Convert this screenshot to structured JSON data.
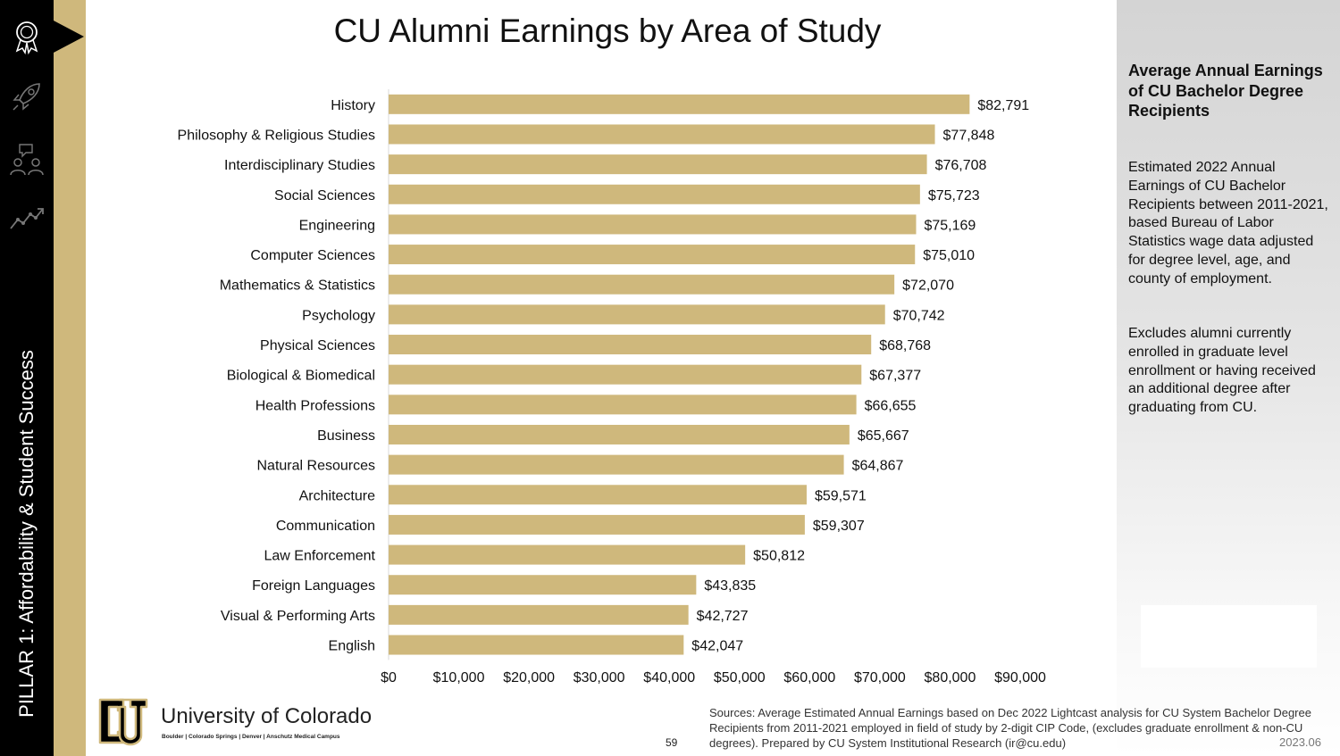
{
  "title": "CU Alumni Earnings by Area of Study",
  "sidebar": {
    "pillar_label": "PILLAR 1: Affordability & Student Success",
    "icons": [
      "award-ribbon-icon",
      "rocket-icon",
      "people-discussion-icon",
      "growth-chart-icon"
    ]
  },
  "panel": {
    "heading": "Average Annual Earnings of CU Bachelor Degree Recipients",
    "description": "Estimated 2022 Annual Earnings of CU Bachelor Recipients between 2011-2021, based Bureau of Labor Statistics wage data adjusted for degree level, age, and county of employment.",
    "note": "Excludes alumni currently enrolled in graduate level enrollment or having received an additional degree after graduating from CU."
  },
  "footer": {
    "university": "University of Colorado",
    "campuses": "Boulder | Colorado Springs | Denver | Anschutz Medical Campus",
    "page_number": "59",
    "sources": "Sources: Average Estimated Annual Earnings based on Dec 2022 Lightcast analysis for CU System Bachelor Degree Recipients from 2011-2021 employed in field of study by 2-digit CIP Code, (excludes graduate enrollment & non-CU degrees). Prepared by CU System Institutional Research (ir@cu.edu)",
    "date_code": "2023.06"
  },
  "colors": {
    "bar": "#cfb87c",
    "sidebar": "#000000",
    "accent_gold": "#cfb87c"
  },
  "chart_data": {
    "type": "bar",
    "orientation": "horizontal",
    "categories": [
      "History",
      "Philosophy & Religious Studies",
      "Interdisciplinary Studies",
      "Social Sciences",
      "Engineering",
      "Computer Sciences",
      "Mathematics & Statistics",
      "Psychology",
      "Physical Sciences",
      "Biological & Biomedical",
      "Health Professions",
      "Business",
      "Natural Resources",
      "Architecture",
      "Communication",
      "Law Enforcement",
      "Foreign Languages",
      "Visual & Performing Arts",
      "English"
    ],
    "values": [
      82791,
      77848,
      76708,
      75723,
      75169,
      75010,
      72070,
      70742,
      68768,
      67377,
      66655,
      65667,
      64867,
      59571,
      59307,
      50812,
      43835,
      42727,
      42047
    ],
    "value_labels": [
      "$82,791",
      "$77,848",
      "$76,708",
      "$75,723",
      "$75,169",
      "$75,010",
      "$72,070",
      "$70,742",
      "$68,768",
      "$67,377",
      "$66,655",
      "$65,667",
      "$64,867",
      "$59,571",
      "$59,307",
      "$50,812",
      "$43,835",
      "$42,727",
      "$42,047"
    ],
    "xlim": [
      0,
      90000
    ],
    "xticks": [
      0,
      10000,
      20000,
      30000,
      40000,
      50000,
      60000,
      70000,
      80000,
      90000
    ],
    "xtick_labels": [
      "$0",
      "$10,000",
      "$20,000",
      "$30,000",
      "$40,000",
      "$50,000",
      "$60,000",
      "$70,000",
      "$80,000",
      "$90,000"
    ],
    "grid": false,
    "legend": "none"
  }
}
